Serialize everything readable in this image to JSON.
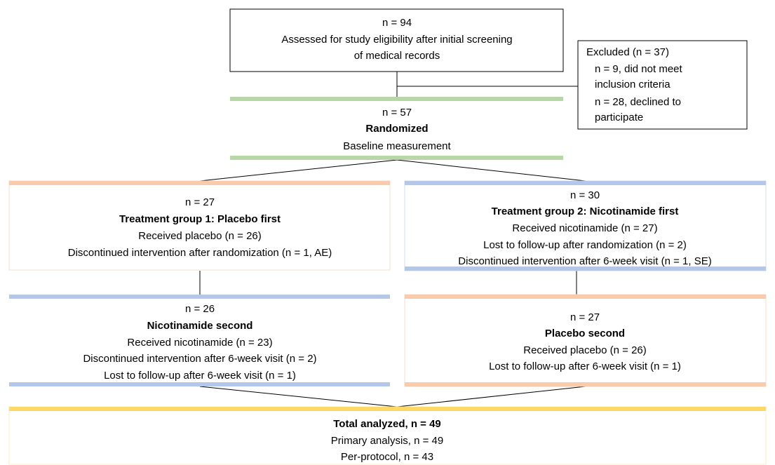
{
  "screening": {
    "count": "n = 94",
    "lines": [
      "Assessed for study eligibility after initial screening",
      "of medical records"
    ]
  },
  "excluded": {
    "title": "Excluded (n = 37)",
    "reasons": [
      "n = 9, did not meet",
      "inclusion criteria",
      "n = 28, declined to",
      "participate"
    ]
  },
  "randomization": {
    "count": "n = 57",
    "title": "Randomized",
    "note": "Baseline measurement"
  },
  "groups": [
    {
      "count": "n = 27",
      "title": "Treatment group 1: Placebo first",
      "lines": [
        "Received placebo (n = 26)",
        "Discontinued intervention after randomization (n = 1, AE)"
      ]
    },
    {
      "count": "n = 30",
      "title": "Treatment group 2: Nicotinamide first",
      "lines": [
        "Received nicotinamide (n = 27)",
        "Lost to follow-up after randomization (n = 2)",
        "Discontinued intervention after 6-week visit (n = 1, SE)"
      ]
    },
    {
      "count": "n = 26",
      "title": "Nicotinamide second",
      "lines": [
        "Received nicotinamide (n = 23)",
        "Discontinued intervention after 6-week visit (n = 2)",
        "Lost to follow-up after 6-week visit (n = 1)"
      ]
    },
    {
      "count": "n = 27",
      "title": "Placebo second",
      "lines": [
        "Received placebo (n = 26)",
        "Lost to follow-up after 6-week visit (n = 1)"
      ]
    }
  ],
  "total": {
    "title": "Total analyzed, n = 49",
    "lines": [
      "Primary analysis, n = 49",
      "Per-protocol, n = 43"
    ]
  }
}
